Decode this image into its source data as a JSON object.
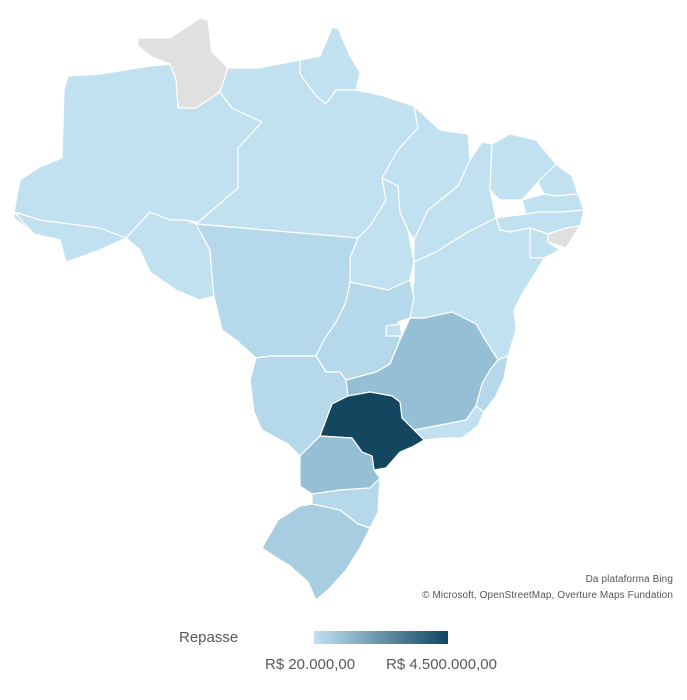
{
  "legend": {
    "title": "Repasse",
    "min_label": "R$ 20.000,00",
    "max_label": "R$ 4.500.000,00",
    "color_low": "#bfe2f3",
    "color_high": "#0f4661"
  },
  "attribution": {
    "line1": "Da plataforma Bing",
    "line2": "© Microsoft, OpenStreetMap,  Overture Maps Fundation"
  },
  "colors": {
    "no_data": "#e0e0e0",
    "level_1": "#c1e1f1",
    "level_2": "#b5d8ea",
    "level_3": "#a7cde0",
    "level_4": "#95bfd4",
    "level_top": "#12475f",
    "border": "#ffffff"
  },
  "regions": [
    {
      "name": "RR",
      "level": "no_data"
    },
    {
      "name": "AP",
      "level": "level_1"
    },
    {
      "name": "AM",
      "level": "level_1"
    },
    {
      "name": "PA",
      "level": "level_1"
    },
    {
      "name": "AC",
      "level": "level_1"
    },
    {
      "name": "RO",
      "level": "level_1"
    },
    {
      "name": "MT",
      "level": "level_2"
    },
    {
      "name": "TO",
      "level": "level_1"
    },
    {
      "name": "MA",
      "level": "level_1"
    },
    {
      "name": "PI",
      "level": "level_1"
    },
    {
      "name": "CE",
      "level": "level_1"
    },
    {
      "name": "RN",
      "level": "level_1"
    },
    {
      "name": "PB",
      "level": "level_1"
    },
    {
      "name": "PE",
      "level": "level_1"
    },
    {
      "name": "AL",
      "level": "no_data"
    },
    {
      "name": "SE",
      "level": "level_1"
    },
    {
      "name": "BA",
      "level": "level_1"
    },
    {
      "name": "GO",
      "level": "level_2"
    },
    {
      "name": "DF",
      "level": "level_1"
    },
    {
      "name": "MS",
      "level": "level_2"
    },
    {
      "name": "MG",
      "level": "level_4"
    },
    {
      "name": "ES",
      "level": "level_2"
    },
    {
      "name": "RJ",
      "level": "level_1"
    },
    {
      "name": "SP",
      "level": "level_top"
    },
    {
      "name": "PR",
      "level": "level_4"
    },
    {
      "name": "SC",
      "level": "level_2"
    },
    {
      "name": "RS",
      "level": "level_3"
    }
  ]
}
